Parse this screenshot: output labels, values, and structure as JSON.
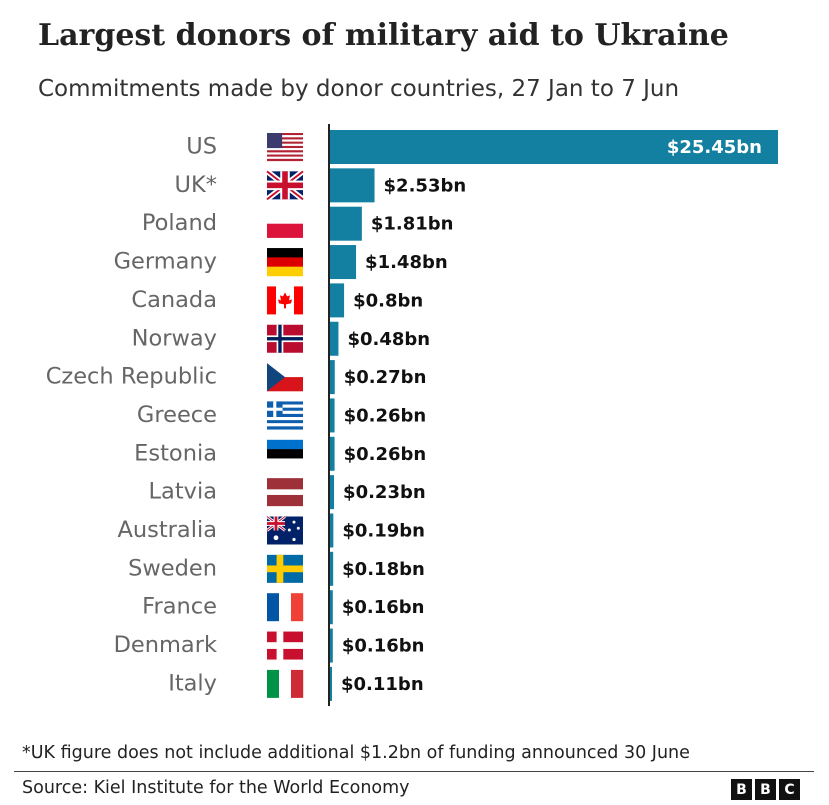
{
  "chart_data": {
    "type": "bar",
    "orientation": "horizontal",
    "title": "Largest donors of military aid to Ukraine",
    "subtitle": "Commitments made by donor countries, 27 Jan to 7 Jun",
    "categories": [
      "US",
      "UK*",
      "Poland",
      "Germany",
      "Canada",
      "Norway",
      "Czech Republic",
      "Greece",
      "Estonia",
      "Latvia",
      "Australia",
      "Sweden",
      "France",
      "Denmark",
      "Italy"
    ],
    "flags": [
      "us-flag-icon",
      "uk-flag-icon",
      "poland-flag-icon",
      "germany-flag-icon",
      "canada-flag-icon",
      "norway-flag-icon",
      "czech-republic-flag-icon",
      "greece-flag-icon",
      "estonia-flag-icon",
      "latvia-flag-icon",
      "australia-flag-icon",
      "sweden-flag-icon",
      "france-flag-icon",
      "denmark-flag-icon",
      "italy-flag-icon"
    ],
    "values": [
      25.45,
      2.53,
      1.81,
      1.48,
      0.8,
      0.48,
      0.27,
      0.26,
      0.26,
      0.23,
      0.19,
      0.18,
      0.16,
      0.16,
      0.11
    ],
    "value_labels": [
      "$25.45bn",
      "$2.53bn",
      "$1.81bn",
      "$1.48bn",
      "$0.8bn",
      "$0.48bn",
      "$0.27bn",
      "$0.26bn",
      "$0.26bn",
      "$0.23bn",
      "$0.19bn",
      "$0.18bn",
      "$0.16bn",
      "$0.16bn",
      "$0.11bn"
    ],
    "unit": "$bn",
    "xlim": [
      0,
      25.45
    ],
    "bar_color": "#1380A1",
    "grid": false,
    "legend": "none"
  },
  "footnote": "*UK figure does not include additional $1.2bn of funding announced 30 June",
  "source": "Source: Kiel Institute for the World Economy",
  "logo": [
    "B",
    "B",
    "C"
  ]
}
